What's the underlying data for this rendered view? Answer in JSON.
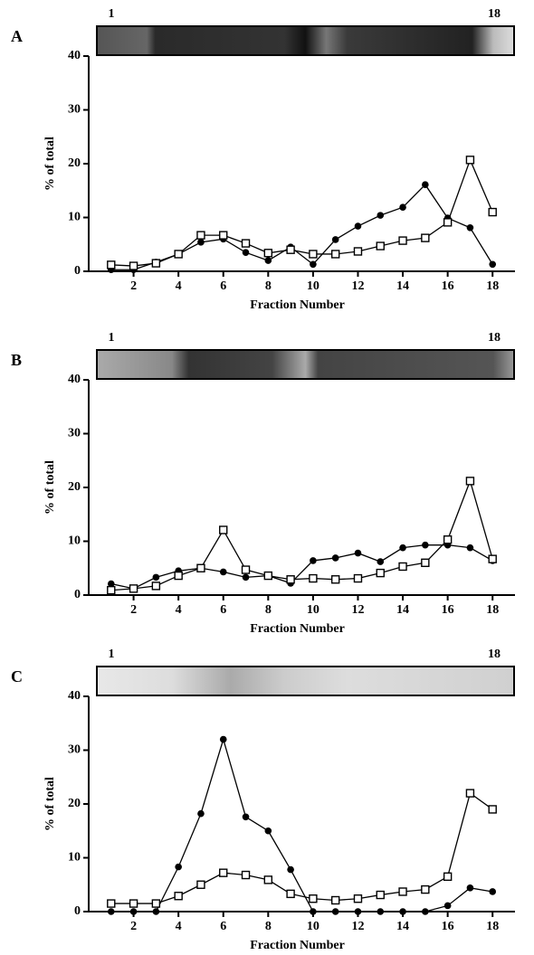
{
  "chart_data": [
    {
      "type": "line",
      "panel": "A",
      "lane_labels": [
        "1",
        "18"
      ],
      "y_label": "% of total",
      "x_label": "Fraction Number",
      "x": [
        1,
        2,
        3,
        4,
        5,
        6,
        7,
        8,
        9,
        10,
        11,
        12,
        13,
        14,
        15,
        16,
        17,
        18
      ],
      "series": [
        {
          "color": "#000000",
          "marker": "circle",
          "values": [
            0.3,
            0.3,
            1.7,
            3.2,
            5.4,
            6,
            3.5,
            2,
            4.5,
            1.3,
            5.9,
            8.4,
            10.4,
            11.9,
            16.1,
            9.9,
            8.1,
            1.3
          ]
        },
        {
          "color": "#000000",
          "marker": "square",
          "values": [
            1.2,
            1,
            1.5,
            3.2,
            6.7,
            6.7,
            5.2,
            3.4,
            4,
            3.2,
            3.2,
            3.7,
            4.7,
            5.7,
            6.2,
            9.1,
            20.7,
            11
          ]
        }
      ],
      "xlim": [
        0,
        19
      ],
      "xticks": [
        2,
        4,
        6,
        8,
        10,
        12,
        14,
        16,
        18
      ],
      "ylim": [
        0,
        40
      ],
      "yticks": [
        0,
        10,
        20,
        30,
        40
      ]
    },
    {
      "type": "line",
      "panel": "B",
      "lane_labels": [
        "1",
        "18"
      ],
      "y_label": "% of total",
      "x_label": "Fraction Number",
      "x": [
        1,
        2,
        3,
        4,
        5,
        6,
        7,
        8,
        9,
        10,
        11,
        12,
        13,
        14,
        15,
        16,
        17,
        18
      ],
      "series": [
        {
          "color": "#000000",
          "marker": "circle",
          "values": [
            2.1,
            1.2,
            3.3,
            4.5,
            5,
            4.3,
            3.3,
            3.6,
            2.2,
            6.4,
            6.9,
            7.8,
            6.2,
            8.8,
            9.3,
            9.3,
            8.8,
            6.4
          ]
        },
        {
          "color": "#000000",
          "marker": "square",
          "values": [
            0.9,
            1.2,
            1.7,
            3.6,
            5,
            12.1,
            4.7,
            3.6,
            2.9,
            3.1,
            2.9,
            3.1,
            4.1,
            5.3,
            6,
            10.3,
            21.2,
            6.7
          ]
        }
      ],
      "xlim": [
        0,
        19
      ],
      "xticks": [
        2,
        4,
        6,
        8,
        10,
        12,
        14,
        16,
        18
      ],
      "ylim": [
        0,
        40
      ],
      "yticks": [
        0,
        10,
        20,
        30,
        40
      ]
    },
    {
      "type": "line",
      "panel": "C",
      "lane_labels": [
        "1",
        "18"
      ],
      "y_label": "% of total",
      "x_label": "Fraction Number",
      "x": [
        1,
        2,
        3,
        4,
        5,
        6,
        7,
        8,
        9,
        10,
        11,
        12,
        13,
        14,
        15,
        16,
        17,
        18
      ],
      "series": [
        {
          "color": "#000000",
          "marker": "circle",
          "values": [
            0,
            0,
            0,
            8.3,
            18.2,
            32,
            17.6,
            15,
            7.8,
            0,
            0,
            0,
            0,
            0,
            0,
            1.1,
            4.4,
            3.7
          ]
        },
        {
          "color": "#000000",
          "marker": "square",
          "values": [
            1.5,
            1.5,
            1.5,
            2.9,
            5,
            7.2,
            6.8,
            5.9,
            3.3,
            2.4,
            2.1,
            2.4,
            3.1,
            3.7,
            4.1,
            6.5,
            22,
            19
          ]
        }
      ],
      "xlim": [
        0,
        19
      ],
      "xticks": [
        2,
        4,
        6,
        8,
        10,
        12,
        14,
        16,
        18
      ],
      "ylim": [
        0,
        40
      ],
      "yticks": [
        0,
        10,
        20,
        30,
        40
      ]
    }
  ]
}
